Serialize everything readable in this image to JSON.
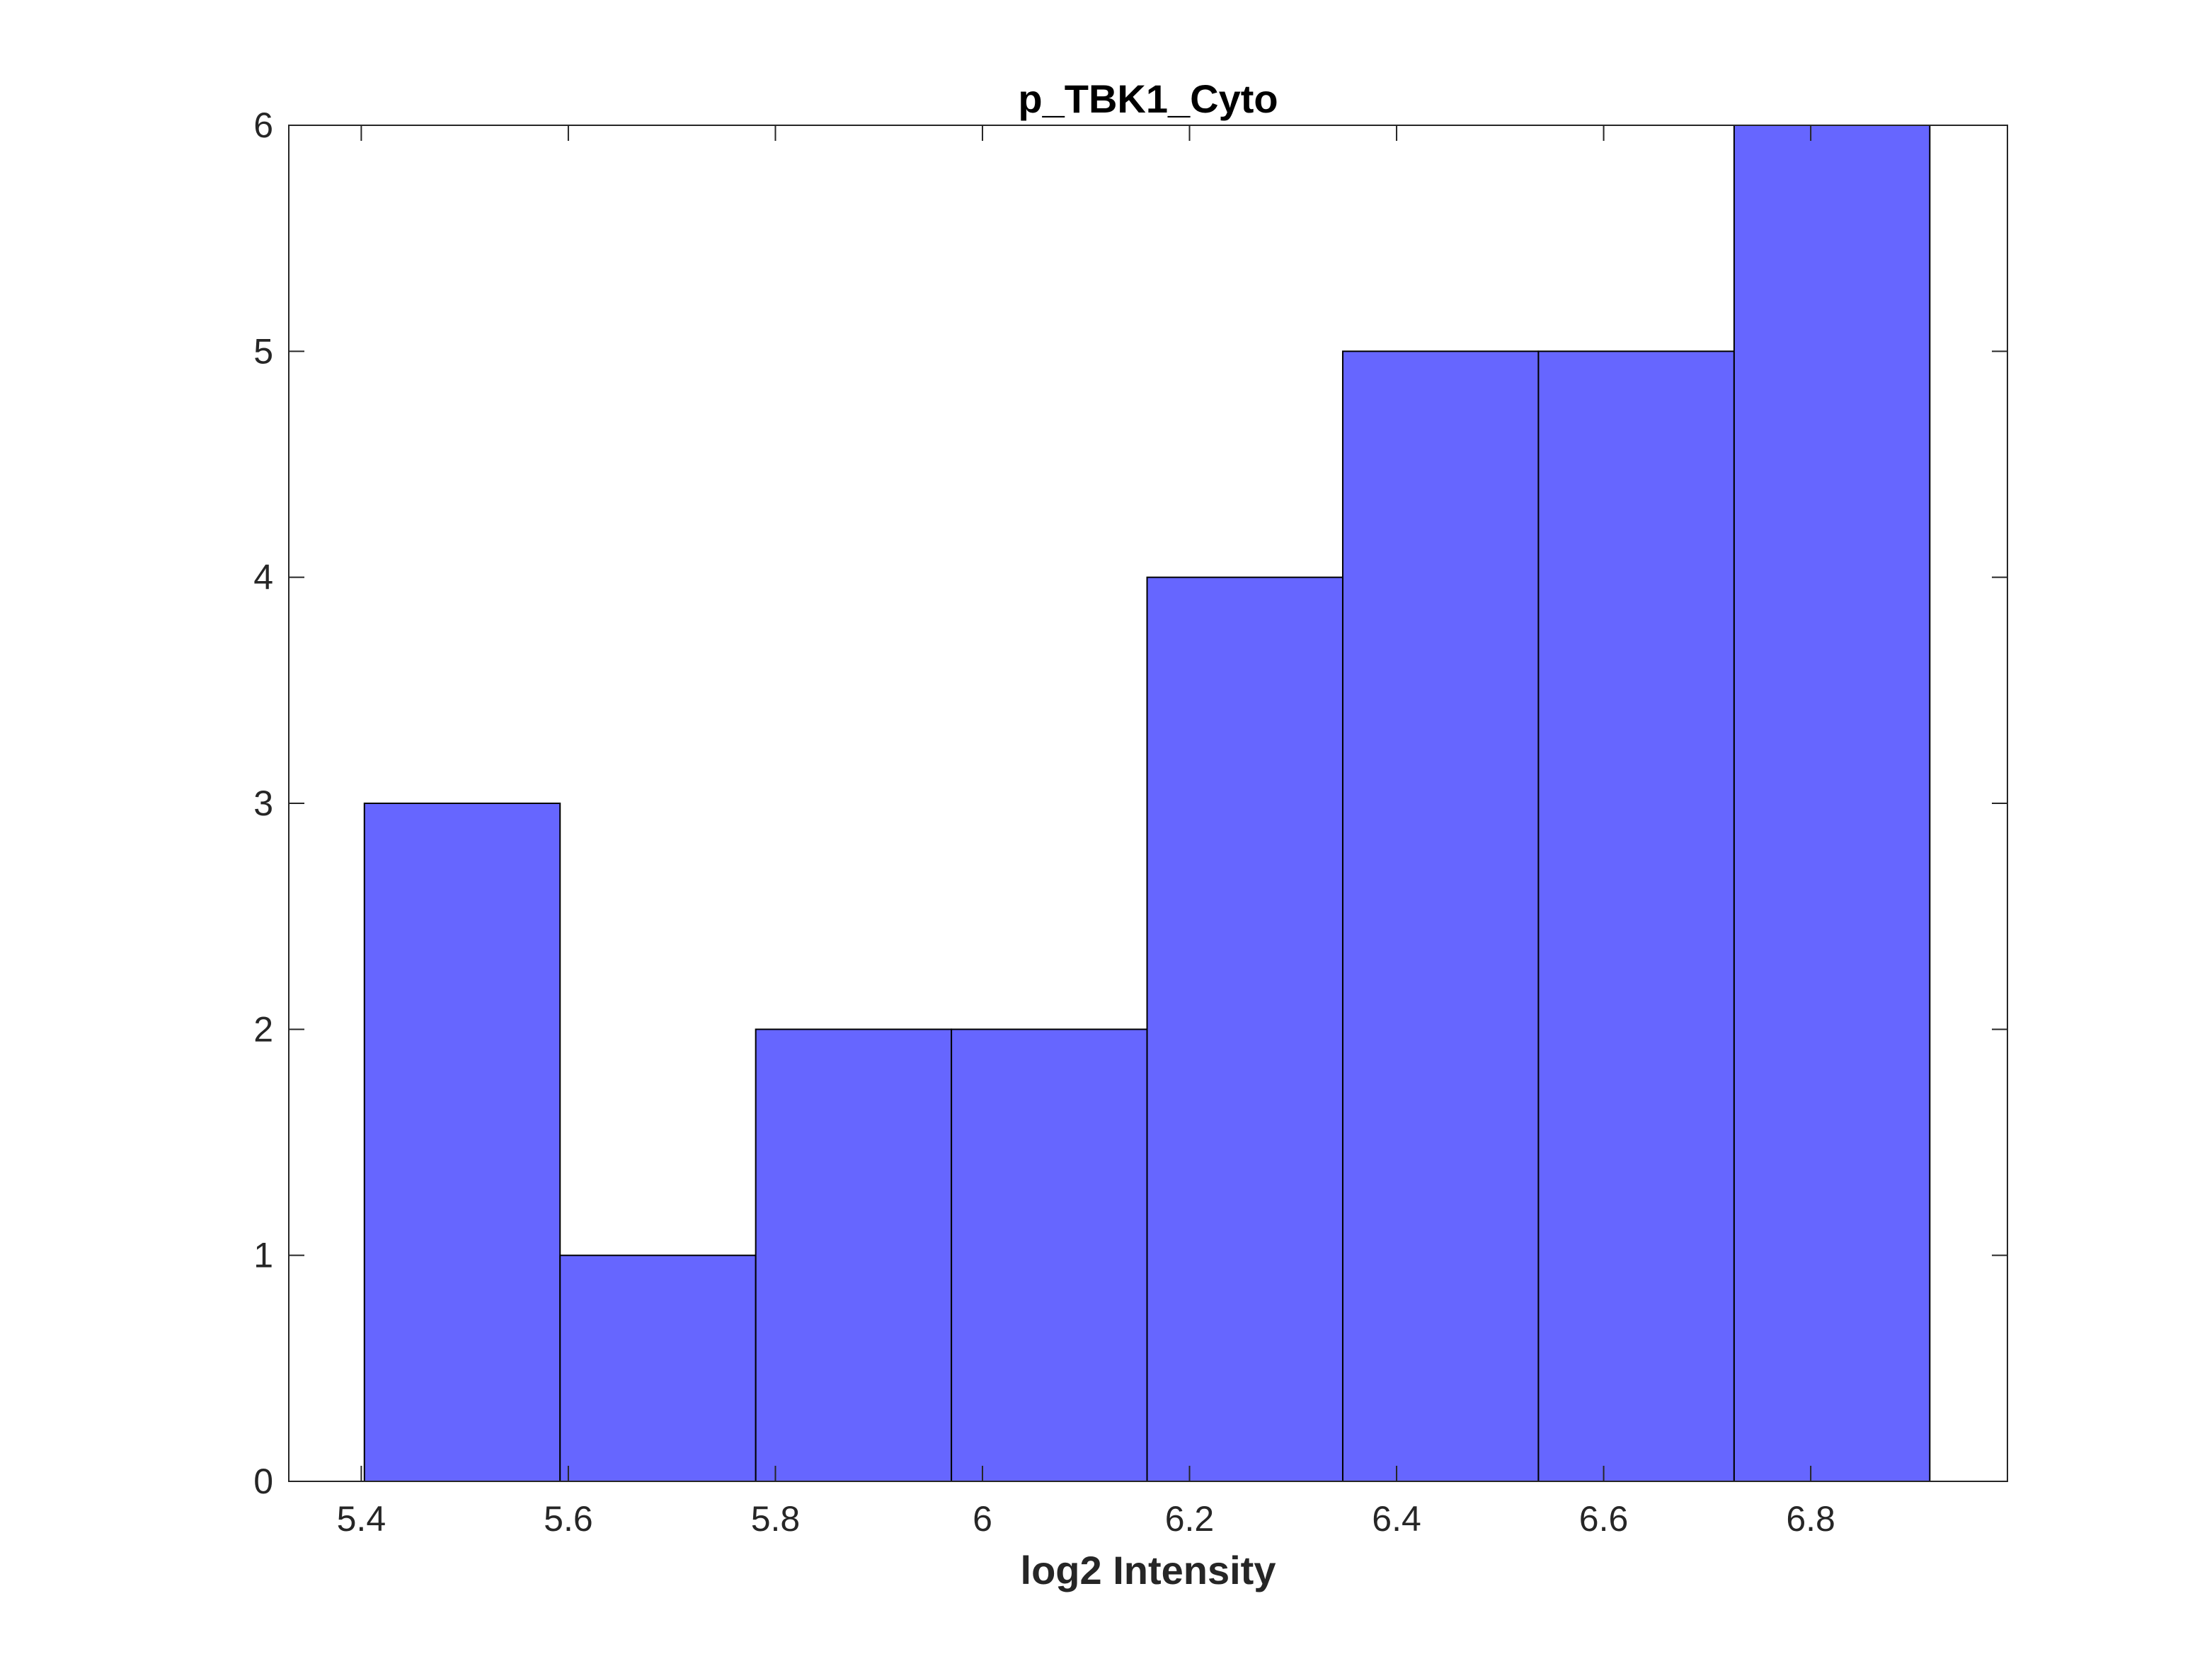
{
  "chart_data": {
    "type": "bar",
    "subtype": "histogram",
    "title": "p_TBK1_Cyto",
    "xlabel": "log2 Intensity",
    "ylabel": "",
    "bin_edges": [
      5.403,
      5.592,
      5.781,
      5.97,
      6.159,
      6.348,
      6.537,
      6.726,
      6.915
    ],
    "values": [
      3,
      1,
      2,
      2,
      4,
      5,
      5,
      6
    ],
    "xlim": [
      5.33,
      6.99
    ],
    "ylim": [
      0,
      6
    ],
    "xticks": [
      5.4,
      5.6,
      5.8,
      6,
      6.2,
      6.4,
      6.6,
      6.8
    ],
    "xtick_labels": [
      "5.4",
      "5.6",
      "5.8",
      "6",
      "6.2",
      "6.4",
      "6.6",
      "6.8"
    ],
    "yticks": [
      0,
      1,
      2,
      3,
      4,
      5,
      6
    ],
    "ytick_labels": [
      "0",
      "1",
      "2",
      "3",
      "4",
      "5",
      "6"
    ],
    "grid": false,
    "legend": "none",
    "colors": {
      "bar_fill": "#6666ff",
      "bar_edge": "#000000",
      "axis": "#262626",
      "background": "#ffffff"
    }
  }
}
